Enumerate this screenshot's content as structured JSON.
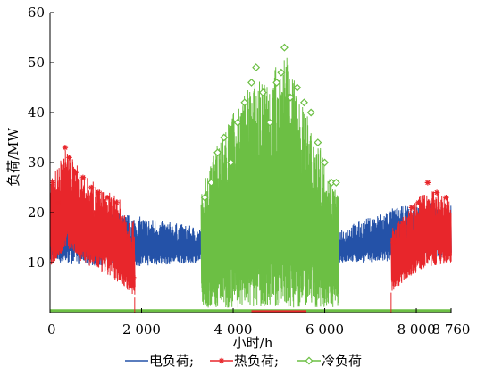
{
  "chart_data": {
    "type": "line",
    "xlabel": "小时/h",
    "ylabel": "负荷/MW",
    "xlim": [
      0,
      8760
    ],
    "ylim": [
      0,
      60
    ],
    "x_ticks": [
      {
        "value": 0,
        "label": "0"
      },
      {
        "value": 2000,
        "label": "2 000"
      },
      {
        "value": 4000,
        "label": "4 000"
      },
      {
        "value": 6000,
        "label": "6 000"
      },
      {
        "value": 8000,
        "label": "8 000"
      },
      {
        "value": 8760,
        "label": "8 760"
      }
    ],
    "y_ticks": [
      {
        "value": 10,
        "label": "10"
      },
      {
        "value": 20,
        "label": "20"
      },
      {
        "value": 30,
        "label": "30"
      },
      {
        "value": 40,
        "label": "40"
      },
      {
        "value": 50,
        "label": "50"
      },
      {
        "value": 60,
        "label": "60"
      }
    ],
    "legend_position": "bottom",
    "series": [
      {
        "name": "电负荷;",
        "color": "#2452a8",
        "marker": "none",
        "band": [
          {
            "x": 0,
            "low": 10,
            "high": 22
          },
          {
            "x": 1500,
            "low": 9,
            "high": 20
          },
          {
            "x": 3300,
            "low": 10,
            "high": 17
          },
          {
            "x": 6400,
            "low": 10,
            "high": 17
          },
          {
            "x": 7500,
            "low": 10,
            "high": 21
          },
          {
            "x": 8200,
            "low": 11,
            "high": 22
          },
          {
            "x": 8760,
            "low": 11,
            "high": 22
          }
        ]
      },
      {
        "name": "热负荷;",
        "color": "#e8262b",
        "marker": "asterisk",
        "band": [
          {
            "x": 0,
            "low": 9,
            "high": 26
          },
          {
            "x": 350,
            "low": 13,
            "high": 33
          },
          {
            "x": 700,
            "low": 10,
            "high": 28
          },
          {
            "x": 1100,
            "low": 8,
            "high": 25
          },
          {
            "x": 1500,
            "low": 6,
            "high": 23
          },
          {
            "x": 1850,
            "low": 3,
            "high": 18
          },
          {
            "x": 7450,
            "low": 4,
            "high": 17
          },
          {
            "x": 7800,
            "low": 7,
            "high": 20
          },
          {
            "x": 8200,
            "low": 9,
            "high": 25
          },
          {
            "x": 8760,
            "low": 10,
            "high": 23
          }
        ],
        "marker_points": [
          [
            60,
            26
          ],
          [
            180,
            22
          ],
          [
            330,
            33
          ],
          [
            420,
            31
          ],
          [
            560,
            28
          ],
          [
            720,
            27
          ],
          [
            900,
            25
          ],
          [
            1050,
            24
          ],
          [
            1250,
            23
          ],
          [
            1450,
            22
          ],
          [
            1700,
            15
          ],
          [
            1820,
            7
          ],
          [
            7500,
            14
          ],
          [
            7700,
            17
          ],
          [
            7900,
            21
          ],
          [
            8050,
            22
          ],
          [
            8250,
            26
          ],
          [
            8450,
            24
          ],
          [
            8650,
            23
          ]
        ]
      },
      {
        "name": "冷负荷",
        "color": "#6cbf44",
        "marker": "diamond",
        "band": [
          {
            "x": 3300,
            "low": 1,
            "high": 24
          },
          {
            "x": 3600,
            "low": 1,
            "high": 33
          },
          {
            "x": 4000,
            "low": 1,
            "high": 40
          },
          {
            "x": 4400,
            "low": 1,
            "high": 46
          },
          {
            "x": 4800,
            "low": 1,
            "high": 47
          },
          {
            "x": 5100,
            "low": 1,
            "high": 53
          },
          {
            "x": 5500,
            "low": 1,
            "high": 42
          },
          {
            "x": 5900,
            "low": 1,
            "high": 33
          },
          {
            "x": 6300,
            "low": 1,
            "high": 24
          }
        ],
        "marker_points": [
          [
            3380,
            23
          ],
          [
            3520,
            26
          ],
          [
            3660,
            32
          ],
          [
            3800,
            35
          ],
          [
            3950,
            30
          ],
          [
            4100,
            38
          ],
          [
            4250,
            42
          ],
          [
            4400,
            46
          ],
          [
            4500,
            49
          ],
          [
            4650,
            44
          ],
          [
            4800,
            38
          ],
          [
            4950,
            46
          ],
          [
            5050,
            48
          ],
          [
            5120,
            53
          ],
          [
            5250,
            43
          ],
          [
            5400,
            45
          ],
          [
            5550,
            42
          ],
          [
            5700,
            40
          ],
          [
            5850,
            34
          ],
          [
            6000,
            30
          ],
          [
            6150,
            26
          ],
          [
            6250,
            26
          ]
        ]
      }
    ]
  }
}
